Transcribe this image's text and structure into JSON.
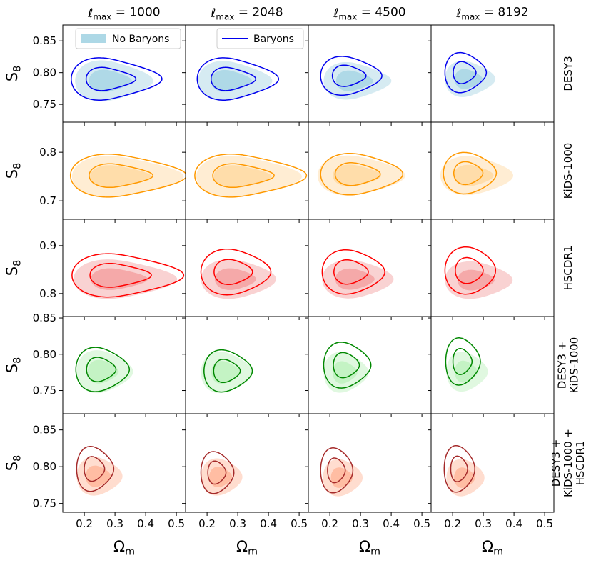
{
  "chart_data": {
    "type": "contour",
    "title": "",
    "xlabel_base": "Ω",
    "xlabel_sub": "m",
    "ylabel_base": "S",
    "ylabel_sub": "8",
    "column_title_base": "ℓ",
    "column_title_sub": "max",
    "columns": [
      "1000",
      "2048",
      "4500",
      "8192"
    ],
    "x_range": [
      0.13,
      0.53
    ],
    "x_ticks": [
      0.2,
      0.3,
      0.4,
      0.5
    ],
    "x_ticklabels": [
      "0.2",
      "0.3",
      "0.4",
      "0.5"
    ],
    "legend": {
      "no_baryons": "No Baryons",
      "baryons": "Baryons",
      "location_panel_1": "upper-left",
      "location_panel_2": "upper-right"
    },
    "rows": [
      {
        "label": [
          "DESY3"
        ],
        "fill_color": "#add8e6",
        "line_color": "#0000ee",
        "y_range": [
          0.722,
          0.875
        ],
        "y_ticks": [
          0.75,
          0.8,
          0.85
        ],
        "y_ticklabels": [
          "0.75",
          "0.80",
          "0.85"
        ],
        "panels": [
          {
            "fill": {
              "cx": 0.27,
              "cy": 0.787,
              "w": 0.2,
              "h": 0.064,
              "stretch": 0.55,
              "tilt": -0.15
            },
            "line": {
              "cx": 0.265,
              "cy": 0.79,
              "w": 0.215,
              "h": 0.066,
              "stretch": 0.75,
              "tilt": -0.15
            }
          },
          {
            "fill": {
              "cx": 0.265,
              "cy": 0.787,
              "w": 0.19,
              "h": 0.062,
              "stretch": 0.55,
              "tilt": -0.15
            },
            "line": {
              "cx": 0.268,
              "cy": 0.79,
              "w": 0.2,
              "h": 0.066,
              "stretch": 0.65,
              "tilt": -0.15
            }
          },
          {
            "fill": {
              "cx": 0.27,
              "cy": 0.787,
              "w": 0.18,
              "h": 0.058,
              "stretch": 0.45,
              "tilt": -0.2
            },
            "line": {
              "cx": 0.255,
              "cy": 0.795,
              "w": 0.17,
              "h": 0.06,
              "stretch": 0.35,
              "tilt": -0.2
            }
          },
          {
            "fill": {
              "cx": 0.245,
              "cy": 0.79,
              "w": 0.14,
              "h": 0.056,
              "stretch": 0.35,
              "tilt": -0.2
            },
            "line": {
              "cx": 0.235,
              "cy": 0.8,
              "w": 0.12,
              "h": 0.062,
              "stretch": 0.25,
              "tilt": -0.2
            }
          }
        ]
      },
      {
        "label": [
          "KiDS-1000"
        ],
        "fill_color": "#ffdca8",
        "line_color": "#ff9900",
        "y_range": [
          0.662,
          0.862
        ],
        "y_ticks": [
          0.7,
          0.8
        ],
        "y_ticklabels": [
          "0.7",
          "0.8"
        ],
        "panels": [
          {
            "fill": {
              "cx": 0.29,
              "cy": 0.75,
              "w": 0.26,
              "h": 0.085,
              "stretch": 0.8,
              "tilt": -0.1
            },
            "line": {
              "cx": 0.29,
              "cy": 0.752,
              "w": 0.27,
              "h": 0.088,
              "stretch": 0.8,
              "tilt": -0.1
            }
          },
          {
            "fill": {
              "cx": 0.29,
              "cy": 0.75,
              "w": 0.25,
              "h": 0.085,
              "stretch": 0.75,
              "tilt": -0.1
            },
            "line": {
              "cx": 0.29,
              "cy": 0.752,
              "w": 0.26,
              "h": 0.088,
              "stretch": 0.8,
              "tilt": -0.1
            }
          },
          {
            "fill": {
              "cx": 0.27,
              "cy": 0.752,
              "w": 0.22,
              "h": 0.082,
              "stretch": 0.6,
              "tilt": -0.1
            },
            "line": {
              "cx": 0.275,
              "cy": 0.755,
              "w": 0.21,
              "h": 0.085,
              "stretch": 0.55,
              "tilt": -0.1
            }
          },
          {
            "fill": {
              "cx": 0.255,
              "cy": 0.752,
              "w": 0.19,
              "h": 0.08,
              "stretch": 0.5,
              "tilt": -0.1
            },
            "line": {
              "cx": 0.245,
              "cy": 0.757,
              "w": 0.15,
              "h": 0.085,
              "stretch": 0.3,
              "tilt": -0.1
            }
          }
        ]
      },
      {
        "label": [
          "HSCDR1"
        ],
        "fill_color": "#f4a6a6",
        "line_color": "#ff0000",
        "y_range": [
          0.752,
          0.955
        ],
        "y_ticks": [
          0.8,
          0.9
        ],
        "y_ticklabels": [
          "0.8",
          "0.9"
        ],
        "panels": [
          {
            "fill": {
              "cx": 0.29,
              "cy": 0.83,
              "w": 0.25,
              "h": 0.082,
              "stretch": 0.7,
              "tilt": -0.1
            },
            "line": {
              "cx": 0.29,
              "cy": 0.838,
              "w": 0.26,
              "h": 0.09,
              "stretch": 0.8,
              "tilt": -0.1
            }
          },
          {
            "fill": {
              "cx": 0.28,
              "cy": 0.83,
              "w": 0.2,
              "h": 0.082,
              "stretch": 0.45,
              "tilt": -0.1
            },
            "line": {
              "cx": 0.275,
              "cy": 0.845,
              "w": 0.19,
              "h": 0.095,
              "stretch": 0.4,
              "tilt": -0.1
            }
          },
          {
            "fill": {
              "cx": 0.27,
              "cy": 0.83,
              "w": 0.19,
              "h": 0.08,
              "stretch": 0.45,
              "tilt": -0.1
            },
            "line": {
              "cx": 0.26,
              "cy": 0.845,
              "w": 0.17,
              "h": 0.092,
              "stretch": 0.4,
              "tilt": -0.1
            }
          },
          {
            "fill": {
              "cx": 0.265,
              "cy": 0.828,
              "w": 0.18,
              "h": 0.078,
              "stretch": 0.45,
              "tilt": -0.1
            },
            "line": {
              "cx": 0.25,
              "cy": 0.848,
              "w": 0.15,
              "h": 0.098,
              "stretch": 0.2,
              "tilt": -0.1
            }
          }
        ]
      },
      {
        "label": [
          "DESY3 +",
          "KiDS-1000"
        ],
        "fill_color": "#c2f2c2",
        "line_color": "#008800",
        "y_range": [
          0.718,
          0.852
        ],
        "y_ticks": [
          0.75,
          0.8,
          0.85
        ],
        "y_ticklabels": [
          "0.75",
          "0.80",
          "0.85"
        ],
        "panels": [
          {
            "fill": {
              "cx": 0.255,
              "cy": 0.776,
              "w": 0.16,
              "h": 0.058,
              "stretch": 0.3,
              "tilt": -0.2
            },
            "line": {
              "cx": 0.25,
              "cy": 0.779,
              "w": 0.155,
              "h": 0.06,
              "stretch": 0.25,
              "tilt": -0.2
            }
          },
          {
            "fill": {
              "cx": 0.255,
              "cy": 0.775,
              "w": 0.15,
              "h": 0.056,
              "stretch": 0.25,
              "tilt": -0.2
            },
            "line": {
              "cx": 0.26,
              "cy": 0.777,
              "w": 0.14,
              "h": 0.057,
              "stretch": 0.25,
              "tilt": -0.2
            }
          },
          {
            "fill": {
              "cx": 0.245,
              "cy": 0.775,
              "w": 0.13,
              "h": 0.055,
              "stretch": 0.25,
              "tilt": -0.2
            },
            "line": {
              "cx": 0.25,
              "cy": 0.785,
              "w": 0.14,
              "h": 0.062,
              "stretch": 0.2,
              "tilt": -0.2
            }
          },
          {
            "fill": {
              "cx": 0.24,
              "cy": 0.776,
              "w": 0.12,
              "h": 0.054,
              "stretch": 0.25,
              "tilt": -0.2
            },
            "line": {
              "cx": 0.23,
              "cy": 0.79,
              "w": 0.105,
              "h": 0.064,
              "stretch": 0.15,
              "tilt": -0.2
            }
          }
        ]
      },
      {
        "label": [
          "DESY3 +",
          "KiDS-1000 +",
          "HSCDR1"
        ],
        "fill_color": "#ffbba0",
        "line_color": "#a52a2a",
        "y_range": [
          0.738,
          0.872
        ],
        "y_ticks": [
          0.75,
          0.8,
          0.85
        ],
        "y_ticklabels": [
          "0.75",
          "0.80",
          "0.85"
        ],
        "panels": [
          {
            "fill": {
              "cx": 0.24,
              "cy": 0.787,
              "w": 0.13,
              "h": 0.052,
              "stretch": 0.3,
              "tilt": -0.15
            },
            "line": {
              "cx": 0.23,
              "cy": 0.797,
              "w": 0.11,
              "h": 0.06,
              "stretch": 0.2,
              "tilt": -0.2
            }
          },
          {
            "fill": {
              "cx": 0.24,
              "cy": 0.786,
              "w": 0.12,
              "h": 0.05,
              "stretch": 0.25,
              "tilt": -0.15
            },
            "line": {
              "cx": 0.23,
              "cy": 0.792,
              "w": 0.1,
              "h": 0.056,
              "stretch": 0.15,
              "tilt": -0.2
            }
          },
          {
            "fill": {
              "cx": 0.235,
              "cy": 0.785,
              "w": 0.115,
              "h": 0.05,
              "stretch": 0.25,
              "tilt": -0.15
            },
            "line": {
              "cx": 0.22,
              "cy": 0.795,
              "w": 0.1,
              "h": 0.06,
              "stretch": 0.1,
              "tilt": -0.2
            }
          },
          {
            "fill": {
              "cx": 0.235,
              "cy": 0.785,
              "w": 0.11,
              "h": 0.05,
              "stretch": 0.25,
              "tilt": -0.15
            },
            "line": {
              "cx": 0.22,
              "cy": 0.797,
              "w": 0.095,
              "h": 0.062,
              "stretch": 0.1,
              "tilt": -0.2
            }
          }
        ]
      }
    ]
  }
}
